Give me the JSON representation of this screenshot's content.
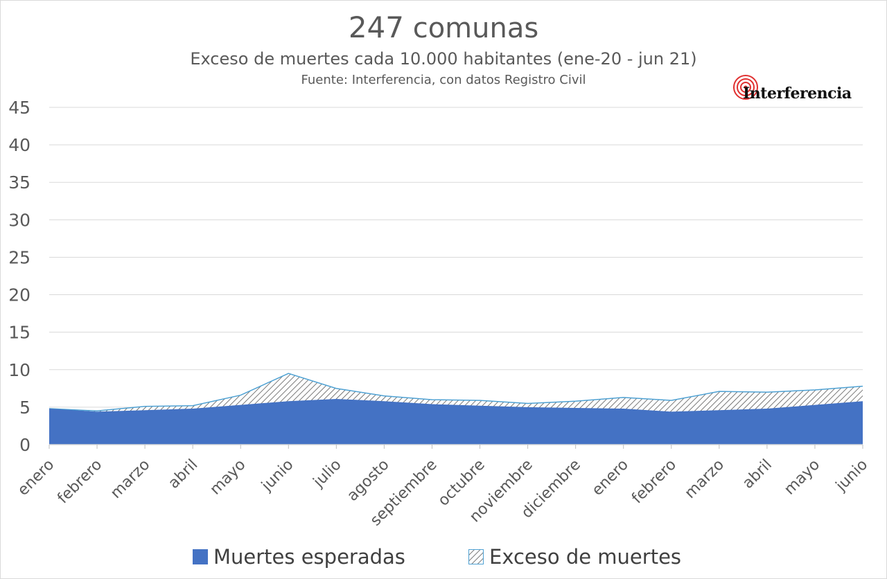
{
  "header": {
    "title_number": "247",
    "title_rest": " comunas",
    "subtitle": "Exceso de muertes cada 10.000 habitantes (ene-20  - jun 21)",
    "source": "Fuente: Interferencia, con datos Registro Civil"
  },
  "logo": {
    "text": "Interferencia",
    "accent": "#e03030"
  },
  "legend": {
    "expected_label": "Muertes esperadas",
    "excess_label": "Exceso de muertes"
  },
  "colors": {
    "expected": "#4472c4",
    "excess_line": "#4ea1d3",
    "hatch": "#555555",
    "grid": "#d9d9d9",
    "text": "#595959"
  },
  "chart_data": {
    "type": "area",
    "title": "247 comunas",
    "subtitle": "Exceso de muertes cada 10.000 habitantes (ene-20  - jun 21)",
    "categories": [
      "enero",
      "febrero",
      "marzo",
      "abril",
      "mayo",
      "junio",
      "julio",
      "agosto",
      "septiembre",
      "octubre",
      "noviembre",
      "diciembre",
      "enero",
      "febrero",
      "marzo",
      "abril",
      "mayo",
      "junio"
    ],
    "series": [
      {
        "name": "Muertes esperadas",
        "values": [
          4.8,
          4.4,
          4.6,
          4.8,
          5.3,
          5.8,
          6.1,
          5.8,
          5.4,
          5.2,
          5.0,
          4.9,
          4.8,
          4.4,
          4.6,
          4.8,
          5.3,
          5.8
        ]
      },
      {
        "name": "Exceso de muertes",
        "values": [
          0.0,
          0.1,
          0.5,
          0.4,
          1.3,
          3.7,
          1.4,
          0.7,
          0.6,
          0.7,
          0.5,
          0.9,
          1.5,
          1.5,
          2.5,
          2.2,
          2.0,
          2.0
        ]
      }
    ],
    "stacked": true,
    "ylim": [
      0,
      45
    ],
    "yticks": [
      "0",
      "5",
      "10",
      "15",
      "20",
      "25",
      "30",
      "35",
      "40",
      "45"
    ],
    "grid": true,
    "legend_position": "bottom"
  }
}
